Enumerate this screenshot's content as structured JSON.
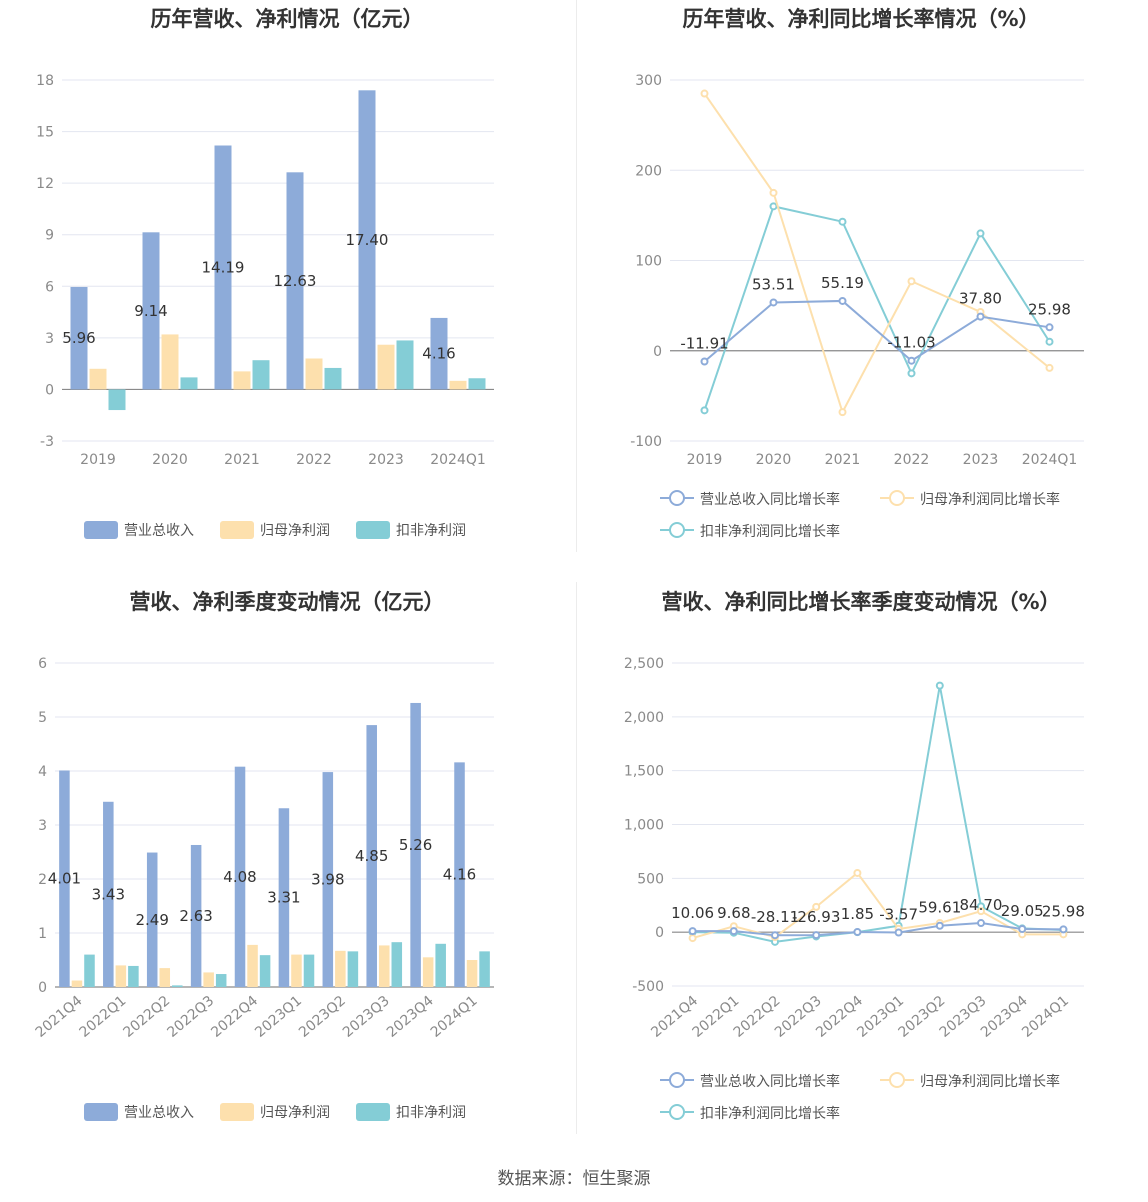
{
  "source": "数据来源：恒生聚源",
  "colors": {
    "revenue": "#8dabd9",
    "net_profit": "#fde0ad",
    "deducted_profit": "#84cdd6",
    "grid": "#e3e6f0",
    "axis": "#8a8a8a"
  },
  "chart_data": [
    {
      "id": "annual-amounts",
      "type": "bar",
      "title": "历年营收、净利情况（亿元）",
      "categories": [
        "2019",
        "2020",
        "2021",
        "2022",
        "2023",
        "2024Q1"
      ],
      "ylim": [
        -3,
        18
      ],
      "yticks": [
        -3,
        0,
        3,
        6,
        9,
        12,
        15,
        18
      ],
      "series": [
        {
          "name": "营业总收入",
          "values": [
            5.96,
            9.14,
            14.19,
            12.63,
            17.4,
            4.16
          ]
        },
        {
          "name": "归母净利润",
          "values": [
            1.2,
            3.2,
            1.05,
            1.8,
            2.6,
            0.5
          ]
        },
        {
          "name": "扣非净利润",
          "values": [
            -1.2,
            0.7,
            1.7,
            1.25,
            2.85,
            0.65
          ]
        }
      ],
      "data_labels": [
        "5.96",
        "9.14",
        "14.19",
        "12.63",
        "17.40",
        "4.16"
      ],
      "legend_position": "bottom",
      "grid": true
    },
    {
      "id": "annual-growth",
      "type": "line",
      "title": "历年营收、净利同比增长率情况（%）",
      "categories": [
        "2019",
        "2020",
        "2021",
        "2022",
        "2023",
        "2024Q1"
      ],
      "ylim": [
        -100,
        300
      ],
      "yticks": [
        -100,
        0,
        100,
        200,
        300
      ],
      "series": [
        {
          "name": "营业总收入同比增长率",
          "values": [
            -11.91,
            53.51,
            55.19,
            -11.03,
            37.8,
            25.98
          ]
        },
        {
          "name": "归母净利润同比增长率",
          "values": [
            285,
            175,
            -68,
            77,
            43,
            -19
          ]
        },
        {
          "name": "扣非净利润同比增长率",
          "values": [
            -66,
            160,
            143,
            -25,
            130,
            10
          ]
        }
      ],
      "data_labels": [
        "-11.91",
        "53.51",
        "55.19",
        "-11.03",
        "37.80",
        "25.98"
      ],
      "legend_position": "bottom",
      "grid": true
    },
    {
      "id": "quarterly-amounts",
      "type": "bar",
      "title": "营收、净利季度变动情况（亿元）",
      "categories": [
        "2021Q4",
        "2022Q1",
        "2022Q2",
        "2022Q3",
        "2022Q4",
        "2023Q1",
        "2023Q2",
        "2023Q3",
        "2023Q4",
        "2024Q1"
      ],
      "ylim": [
        0,
        6
      ],
      "yticks": [
        0,
        1,
        2,
        3,
        4,
        5,
        6
      ],
      "series": [
        {
          "name": "营业总收入",
          "values": [
            4.01,
            3.43,
            2.49,
            2.63,
            4.08,
            3.31,
            3.98,
            4.85,
            5.26,
            4.16
          ]
        },
        {
          "name": "归母净利润",
          "values": [
            0.12,
            0.4,
            0.35,
            0.27,
            0.78,
            0.6,
            0.67,
            0.77,
            0.55,
            0.5
          ]
        },
        {
          "name": "扣非净利润",
          "values": [
            0.6,
            0.39,
            0.03,
            0.24,
            0.59,
            0.6,
            0.66,
            0.83,
            0.8,
            0.66
          ]
        }
      ],
      "data_labels": [
        "4.01",
        "3.43",
        "2.49",
        "2.63",
        "4.08",
        "3.31",
        "3.98",
        "4.85",
        "5.26",
        "4.16"
      ],
      "legend_position": "bottom",
      "grid": true
    },
    {
      "id": "quarterly-growth",
      "type": "line",
      "title": "营收、净利同比增长率季度变动情况（%）",
      "categories": [
        "2021Q4",
        "2022Q1",
        "2022Q2",
        "2022Q3",
        "2022Q4",
        "2023Q1",
        "2023Q2",
        "2023Q3",
        "2023Q4",
        "2024Q1"
      ],
      "ylim": [
        -500,
        2500
      ],
      "yticks": [
        -500,
        0,
        500,
        1000,
        1500,
        2000,
        2500
      ],
      "ytick_labels": [
        "-500",
        "0",
        "500",
        "1,000",
        "1,500",
        "2,000",
        "2,500"
      ],
      "series": [
        {
          "name": "营业总收入同比增长率",
          "values": [
            10.06,
            9.68,
            -28.11,
            -26.93,
            1.85,
            -3.57,
            59.61,
            84.7,
            29.05,
            25.98
          ]
        },
        {
          "name": "归母净利润同比增长率",
          "values": [
            -55,
            55,
            -45,
            235,
            550,
            30,
            85,
            195,
            -20,
            -20
          ]
        },
        {
          "name": "扣非净利润同比增长率",
          "values": [
            0,
            -5,
            -90,
            -40,
            0,
            60,
            2290,
            240,
            35,
            20
          ]
        }
      ],
      "data_labels": [
        "10.06",
        "9.68",
        "-28.11",
        "-26.93",
        "1.85",
        "-3.57",
        "59.61",
        "84.70",
        "29.05",
        "25.98"
      ],
      "legend_position": "bottom",
      "grid": true
    }
  ]
}
